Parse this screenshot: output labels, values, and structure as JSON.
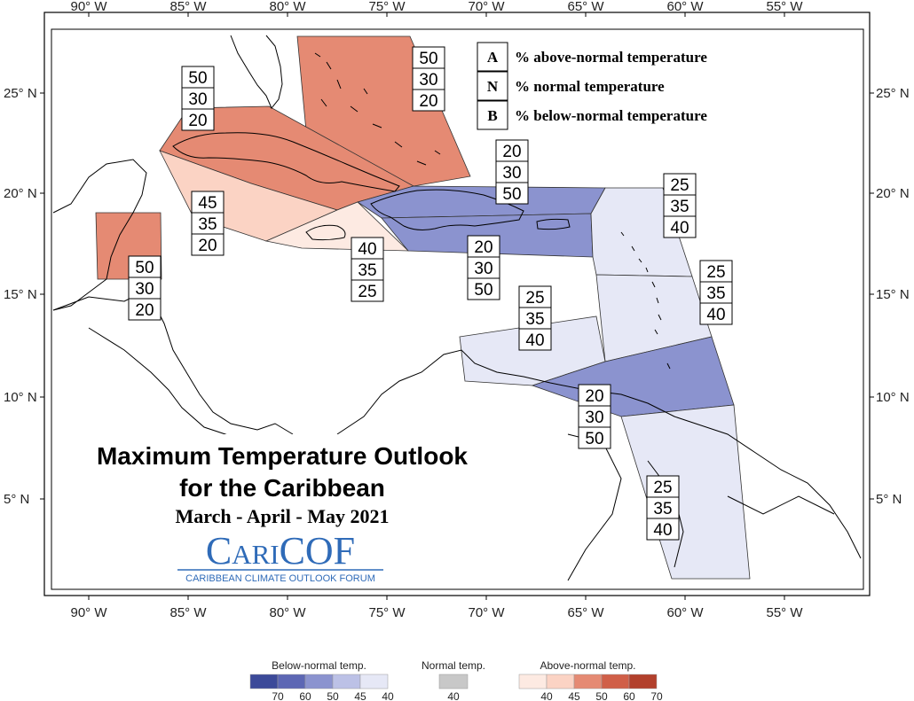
{
  "title": "Maximum Temperature Outlook",
  "subtitle": "for the Caribbean",
  "period": "March - April - May 2021",
  "logo": {
    "name": "CariCOF",
    "tagline": "CARIBBEAN CLIMATE OUTLOOK FORUM"
  },
  "key": [
    {
      "letter": "A",
      "text": "% above-normal temperature"
    },
    {
      "letter": "N",
      "text": "% normal temperature"
    },
    {
      "letter": "B",
      "text": "% below-normal temperature"
    }
  ],
  "axes": {
    "lon_labels": [
      "90° W",
      "85° W",
      "80° W",
      "75° W",
      "70° W",
      "65° W",
      "60° W",
      "55° W"
    ],
    "lat_labels": [
      "25° N",
      "20° N",
      "15° N",
      "10° N",
      "5° N"
    ]
  },
  "regions": [
    {
      "id": "bahamas",
      "above": "50",
      "normal": "30",
      "below": "20",
      "fill": "#e58a73"
    },
    {
      "id": "cuba",
      "above": "50",
      "normal": "30",
      "below": "20",
      "fill": "#e58a73"
    },
    {
      "id": "cayman",
      "above": "45",
      "normal": "35",
      "below": "20",
      "fill": "#fbd3c4"
    },
    {
      "id": "belize",
      "above": "50",
      "normal": "30",
      "below": "20",
      "fill": "#e58a73"
    },
    {
      "id": "jamaica",
      "above": "40",
      "normal": "35",
      "below": "25",
      "fill": "#fdeae2"
    },
    {
      "id": "hispaniola-north",
      "above": "20",
      "normal": "30",
      "below": "50",
      "fill": "#8b93cf"
    },
    {
      "id": "hispaniola-south",
      "above": "20",
      "normal": "30",
      "below": "50",
      "fill": "#8b93cf"
    },
    {
      "id": "leeward",
      "above": "25",
      "normal": "35",
      "below": "40",
      "fill": "#e6e8f6"
    },
    {
      "id": "windward",
      "above": "25",
      "normal": "35",
      "below": "40",
      "fill": "#e6e8f6"
    },
    {
      "id": "abc-islands",
      "above": "25",
      "normal": "35",
      "below": "40",
      "fill": "#e6e8f6"
    },
    {
      "id": "trinidad",
      "above": "20",
      "normal": "30",
      "below": "50",
      "fill": "#8b93cf"
    },
    {
      "id": "guianas",
      "above": "25",
      "normal": "35",
      "below": "40",
      "fill": "#e6e8f6"
    }
  ],
  "legend": {
    "below": {
      "label": "Below-normal temp.",
      "ticks": [
        "70",
        "60",
        "50",
        "45",
        "40"
      ],
      "colors": [
        "#3c4a99",
        "#5d67b4",
        "#8b93cf",
        "#bcc1e6",
        "#e6e8f6"
      ]
    },
    "normal": {
      "label": "Normal temp.",
      "ticks": [
        "40"
      ],
      "colors": [
        "#c8c8c8"
      ]
    },
    "above": {
      "label": "Above-normal temp.",
      "ticks": [
        "40",
        "45",
        "50",
        "60",
        "70"
      ],
      "colors": [
        "#fdeae2",
        "#fbd3c4",
        "#e58a73",
        "#d05f48",
        "#b2402c"
      ]
    }
  }
}
